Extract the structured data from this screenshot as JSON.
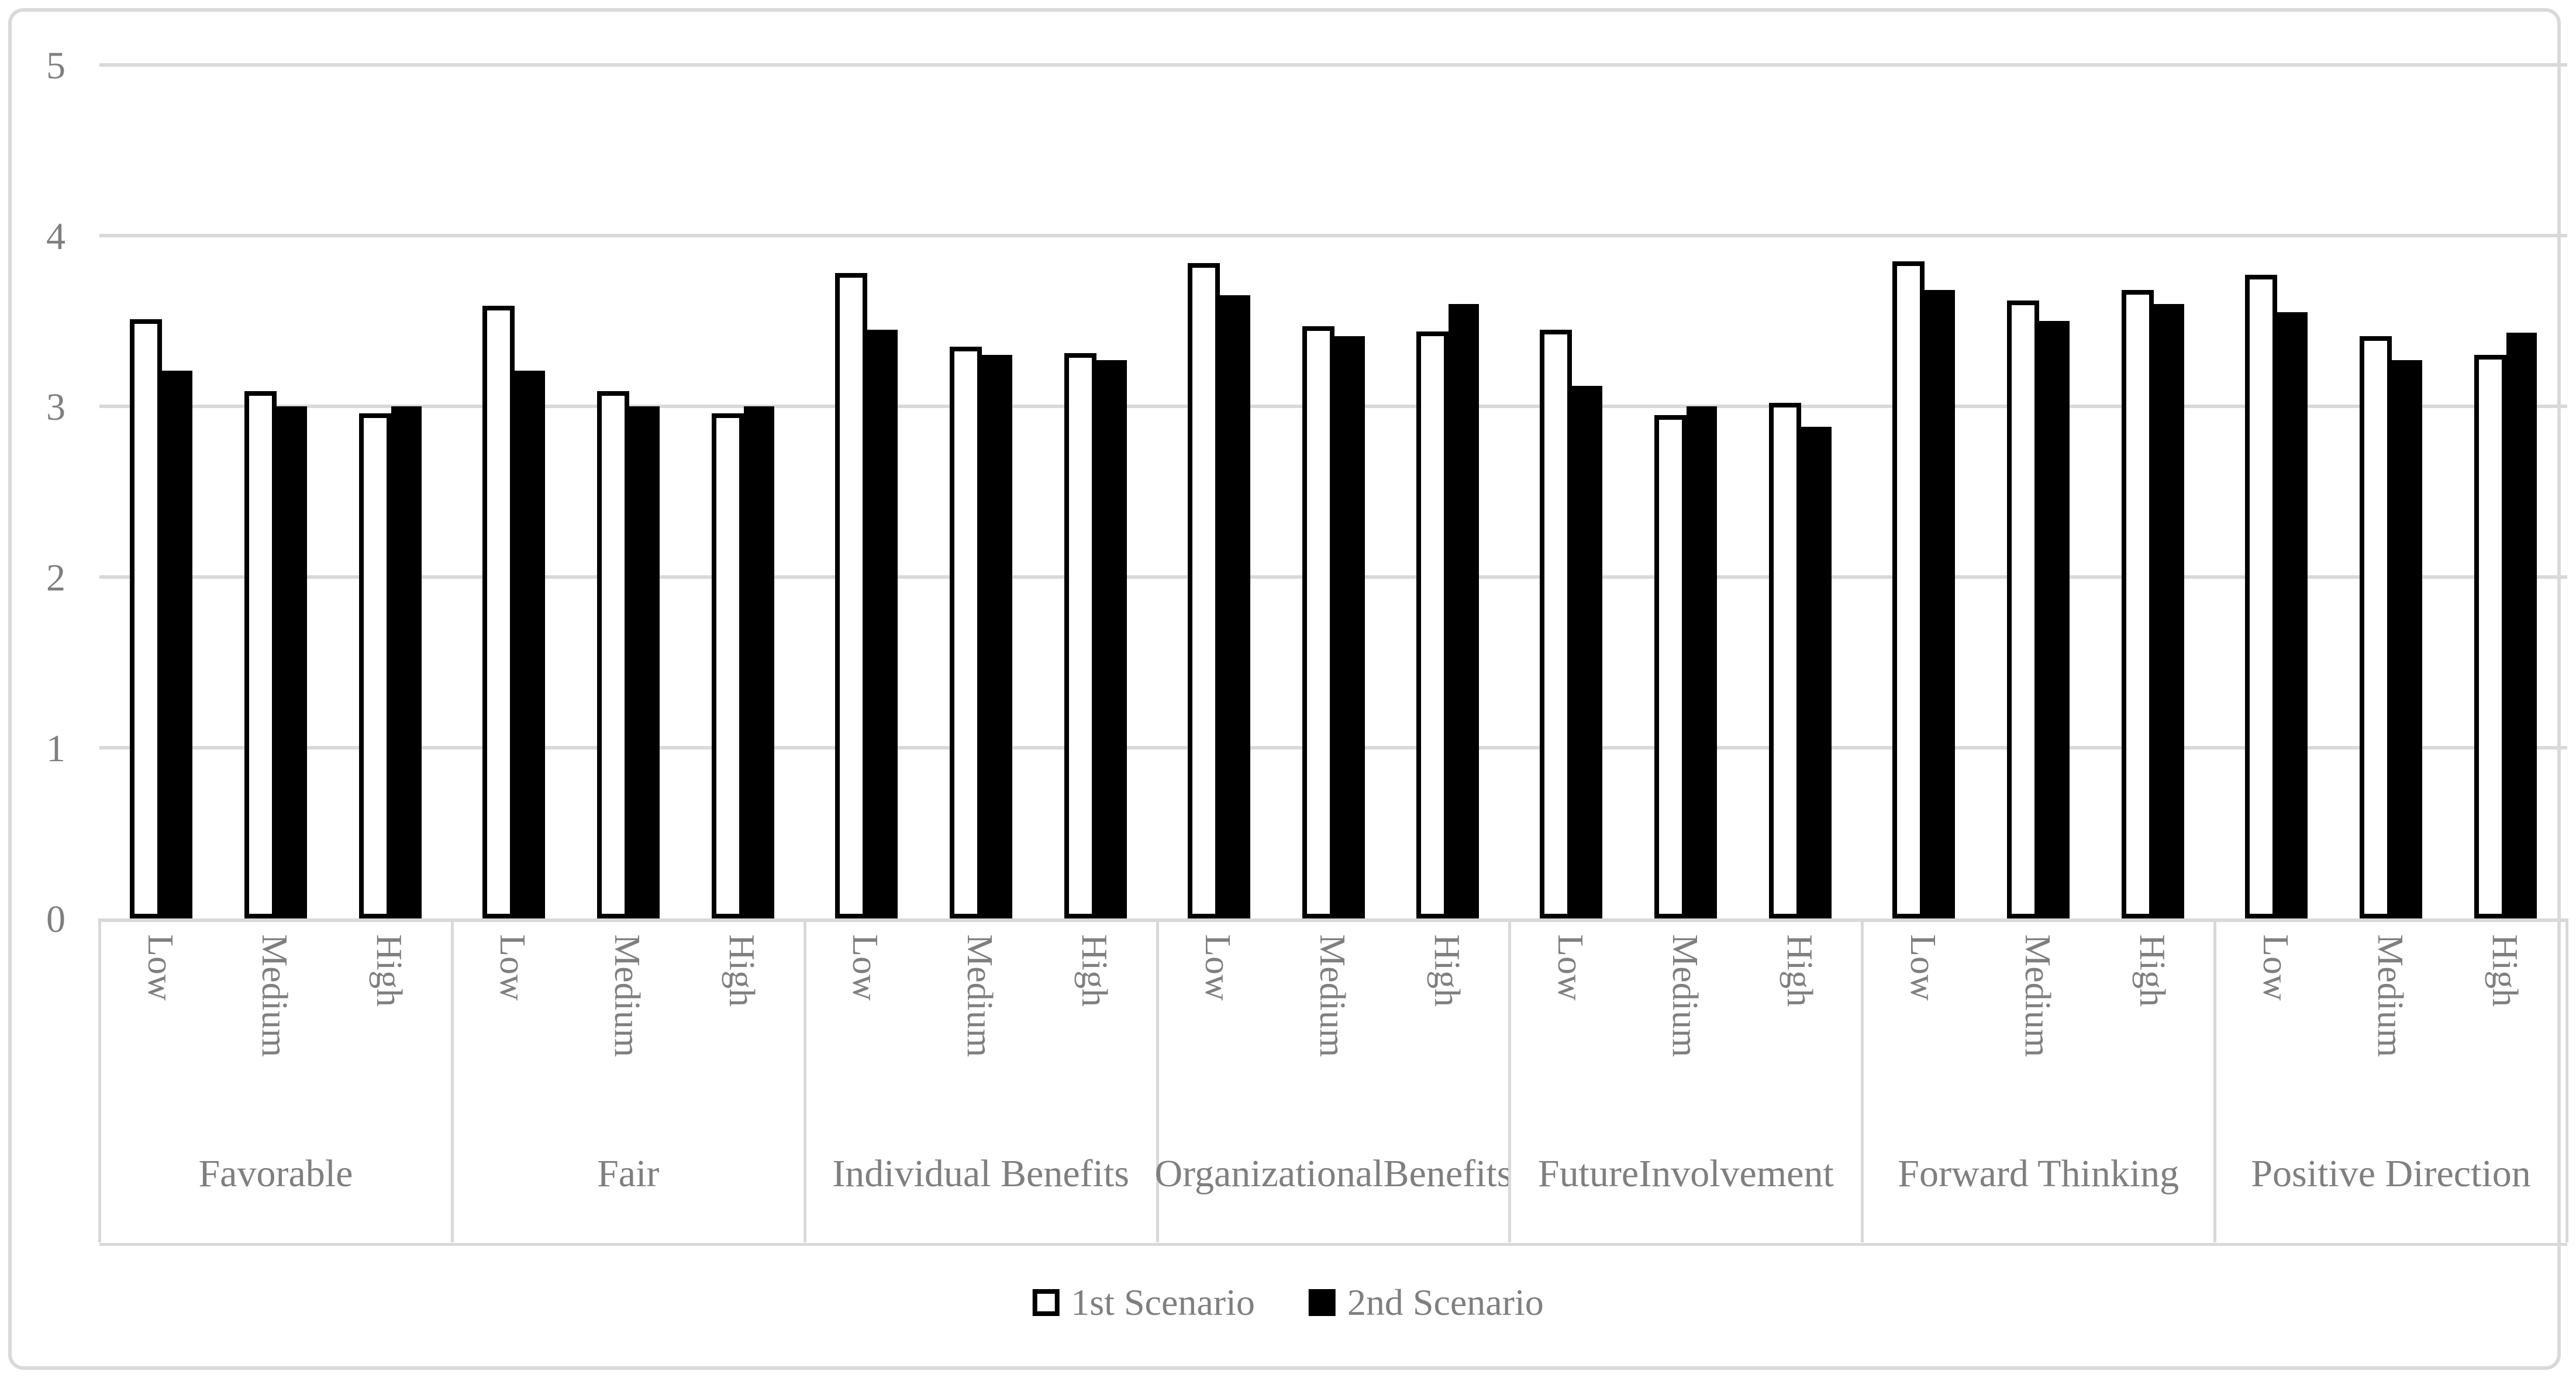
{
  "colors": {
    "background": "#ffffff",
    "frame_border": "#d9d9d9",
    "gridline": "#d9d9d9",
    "axis_text": "#7f7f7f",
    "series1_fill": "#ffffff",
    "series1_border": "#000000",
    "series2_fill": "#000000"
  },
  "chart_data": {
    "type": "bar",
    "title": "",
    "xlabel": "",
    "ylabel": "",
    "ylim": [
      0,
      5
    ],
    "yticks": [
      "0",
      "1",
      "2",
      "3",
      "4",
      "5"
    ],
    "grid": true,
    "legend_position": "bottom",
    "subcategories": [
      "Low",
      "Medium",
      "High"
    ],
    "groups": [
      {
        "label": "Favorable",
        "lines": [
          "Favorable"
        ]
      },
      {
        "label": "Fair",
        "lines": [
          "Fair"
        ]
      },
      {
        "label": "Individual Benefits",
        "lines": [
          "Individual Benefits"
        ]
      },
      {
        "label": "Organizational Benefits",
        "lines": [
          "Organizational",
          "Benefits"
        ]
      },
      {
        "label": "Future Involvement",
        "lines": [
          "Future",
          "Involvement"
        ]
      },
      {
        "label": "Forward Thinking",
        "lines": [
          "Forward Thinking"
        ]
      },
      {
        "label": "Positive Direction",
        "lines": [
          "Positive Direction"
        ]
      }
    ],
    "series": [
      {
        "name": "1st Scenario",
        "style": "open",
        "values": [
          [
            3.51,
            3.09,
            2.96
          ],
          [
            3.59,
            3.09,
            2.96
          ],
          [
            3.78,
            3.35,
            3.31
          ],
          [
            3.84,
            3.47,
            3.44
          ],
          [
            3.45,
            2.95,
            3.02
          ],
          [
            3.85,
            3.62,
            3.68
          ],
          [
            3.77,
            3.41,
            3.3
          ]
        ]
      },
      {
        "name": "2nd Scenario",
        "style": "solid",
        "values": [
          [
            3.21,
            3.0,
            3.0
          ],
          [
            3.21,
            3.0,
            3.0
          ],
          [
            3.45,
            3.3,
            3.27
          ],
          [
            3.65,
            3.41,
            3.6
          ],
          [
            3.12,
            3.0,
            2.88
          ],
          [
            3.68,
            3.5,
            3.6
          ],
          [
            3.55,
            3.27,
            3.43
          ]
        ]
      }
    ]
  }
}
